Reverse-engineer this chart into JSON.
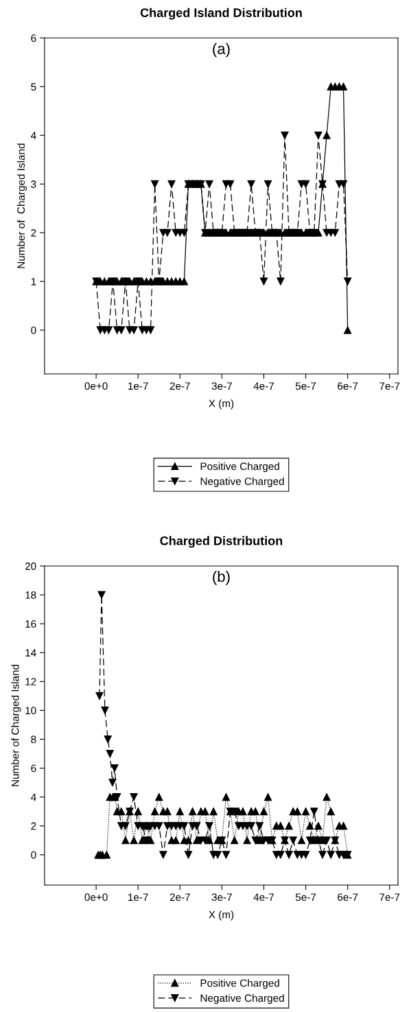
{
  "chart_data": [
    {
      "type": "line",
      "title": "Charged Island Distribution",
      "xlabel": "X (m)",
      "ylabel": "Number of  Charged Island",
      "annotations": [
        "(a)"
      ],
      "xlim": [
        -1.23e-07,
        7.2e-07
      ],
      "xticks": [
        {
          "value": 0,
          "label": "0e+0"
        },
        {
          "value": 1e-07,
          "label": "1e-7"
        },
        {
          "value": 2e-07,
          "label": "2e-7"
        },
        {
          "value": 3e-07,
          "label": "3e-7"
        },
        {
          "value": 4e-07,
          "label": "4e-7"
        },
        {
          "value": 5e-07,
          "label": "5e-7"
        },
        {
          "value": 6e-07,
          "label": "6e-7"
        },
        {
          "value": 7e-07,
          "label": "7e-7"
        }
      ],
      "ylim": [
        -0.9,
        6
      ],
      "yticks": [
        0,
        1,
        2,
        3,
        4,
        5,
        6
      ],
      "grid": false,
      "legend": "bottom",
      "series": [
        {
          "name": "Positive Charged",
          "color": "#000000",
          "marker": "triangle",
          "line_style": "solid",
          "x": [
            0,
            1e-08,
            2e-08,
            3e-08,
            4e-08,
            5e-08,
            6e-08,
            7e-08,
            8e-08,
            9e-08,
            1e-07,
            1.1e-07,
            1.2e-07,
            1.3e-07,
            1.4e-07,
            1.5e-07,
            1.6e-07,
            1.7e-07,
            1.8e-07,
            1.9e-07,
            2e-07,
            2.1e-07,
            2.2e-07,
            2.3e-07,
            2.4e-07,
            2.5e-07,
            2.6e-07,
            2.7e-07,
            2.8e-07,
            2.9e-07,
            3e-07,
            3.1e-07,
            3.2e-07,
            3.3e-07,
            3.4e-07,
            3.5e-07,
            3.6e-07,
            3.7e-07,
            3.8e-07,
            3.9e-07,
            4e-07,
            4.1e-07,
            4.2e-07,
            4.3e-07,
            4.4e-07,
            4.5e-07,
            4.6e-07,
            4.7e-07,
            4.8e-07,
            4.9e-07,
            5e-07,
            5.1e-07,
            5.2e-07,
            5.3e-07,
            5.4e-07,
            5.5e-07,
            5.6e-07,
            5.7e-07,
            5.8e-07,
            5.9e-07,
            6e-07
          ],
          "values": [
            1,
            1,
            1,
            1,
            1,
            1,
            1,
            1,
            1,
            1,
            1,
            1,
            1,
            1,
            1,
            1,
            1,
            1,
            1,
            1,
            1,
            1,
            3,
            3,
            3,
            3,
            2,
            2,
            2,
            2,
            2,
            2,
            2,
            2,
            2,
            2,
            2,
            2,
            2,
            2,
            2,
            2,
            2,
            2,
            2,
            2,
            2,
            2,
            2,
            2,
            2,
            2,
            2,
            2,
            3,
            4,
            5,
            5,
            5,
            5,
            0
          ]
        },
        {
          "name": "Negative Charged",
          "color": "#000000",
          "marker": "triangle_down",
          "line_style": "dashed",
          "x": [
            0,
            1e-08,
            2e-08,
            3e-08,
            4e-08,
            5e-08,
            6e-08,
            7e-08,
            8e-08,
            9e-08,
            1e-07,
            1.1e-07,
            1.2e-07,
            1.3e-07,
            1.4e-07,
            1.5e-07,
            1.6e-07,
            1.7e-07,
            1.8e-07,
            1.9e-07,
            2e-07,
            2.1e-07,
            2.2e-07,
            2.3e-07,
            2.4e-07,
            2.5e-07,
            2.6e-07,
            2.7e-07,
            2.8e-07,
            2.9e-07,
            3e-07,
            3.1e-07,
            3.2e-07,
            3.3e-07,
            3.4e-07,
            3.5e-07,
            3.6e-07,
            3.7e-07,
            3.8e-07,
            3.9e-07,
            4e-07,
            4.1e-07,
            4.2e-07,
            4.3e-07,
            4.4e-07,
            4.5e-07,
            4.6e-07,
            4.7e-07,
            4.8e-07,
            4.9e-07,
            5e-07,
            5.1e-07,
            5.2e-07,
            5.3e-07,
            5.4e-07,
            5.5e-07,
            5.6e-07,
            5.7e-07,
            5.8e-07,
            5.9e-07,
            6e-07
          ],
          "values": [
            1,
            0,
            0,
            0,
            1,
            0,
            0,
            1,
            0,
            0,
            1,
            0,
            0,
            0,
            3,
            1,
            2,
            2,
            3,
            2,
            2,
            2,
            3,
            3,
            3,
            3,
            2,
            3,
            2,
            2,
            2,
            3,
            3,
            2,
            2,
            2,
            2,
            3,
            2,
            2,
            1,
            3,
            2,
            2,
            1,
            4,
            2,
            2,
            2,
            3,
            3,
            2,
            2,
            4,
            3,
            2,
            2,
            2,
            3,
            3,
            1
          ]
        }
      ]
    },
    {
      "type": "line",
      "title": "Charged Distribution",
      "xlabel": "X (m)",
      "ylabel": "Number of Charged Island",
      "annotations": [
        "(b)"
      ],
      "xlim": [
        -1.23e-07,
        7.2e-07
      ],
      "xticks": [
        {
          "value": 0,
          "label": "0e+0"
        },
        {
          "value": 1e-07,
          "label": "1e-7"
        },
        {
          "value": 2e-07,
          "label": "2e-7"
        },
        {
          "value": 3e-07,
          "label": "3e-7"
        },
        {
          "value": 4e-07,
          "label": "4e-7"
        },
        {
          "value": 5e-07,
          "label": "5e-7"
        },
        {
          "value": 6e-07,
          "label": "6e-7"
        },
        {
          "value": 7e-07,
          "label": "7e-7"
        }
      ],
      "ylim": [
        -2.1,
        20
      ],
      "yticks": [
        0,
        2,
        4,
        6,
        8,
        10,
        12,
        14,
        16,
        18,
        20
      ],
      "grid": false,
      "legend": "bottom",
      "series": [
        {
          "name": "Positive Charged",
          "color": "#000000",
          "marker": "triangle",
          "line_style": "dotted",
          "x": [
            5e-09,
            1e-08,
            1.5e-08,
            2.5e-08,
            3.3e-08,
            4e-08,
            4.5e-08,
            5e-08,
            6e-08,
            7e-08,
            8e-08,
            9e-08,
            1e-07,
            1.1e-07,
            1.2e-07,
            1.3e-07,
            1.4e-07,
            1.5e-07,
            1.6e-07,
            1.7e-07,
            1.8e-07,
            1.9e-07,
            2e-07,
            2.1e-07,
            2.2e-07,
            2.3e-07,
            2.4e-07,
            2.5e-07,
            2.6e-07,
            2.7e-07,
            2.8e-07,
            2.9e-07,
            3e-07,
            3.1e-07,
            3.2e-07,
            3.3e-07,
            3.4e-07,
            3.5e-07,
            3.6e-07,
            3.7e-07,
            3.8e-07,
            3.9e-07,
            4e-07,
            4.1e-07,
            4.2e-07,
            4.3e-07,
            4.4e-07,
            4.5e-07,
            4.6e-07,
            4.7e-07,
            4.8e-07,
            4.9e-07,
            5e-07,
            5.1e-07,
            5.2e-07,
            5.3e-07,
            5.4e-07,
            5.5e-07,
            5.6e-07,
            5.7e-07,
            5.8e-07,
            5.9e-07,
            6e-07
          ],
          "values": [
            0,
            0,
            0,
            0,
            4,
            4,
            4,
            3,
            3,
            1,
            3,
            1,
            3,
            1,
            2,
            1,
            3,
            4,
            3,
            3,
            1,
            1,
            3,
            1,
            1,
            3,
            1,
            3,
            3,
            1,
            3,
            1,
            1,
            4,
            3,
            1,
            3,
            3,
            1,
            3,
            3,
            1,
            3,
            4,
            1,
            2,
            2,
            1,
            2,
            3,
            3,
            1,
            3,
            2,
            1,
            2,
            1,
            4,
            3,
            1,
            2,
            2,
            0
          ]
        },
        {
          "name": "Negative Charged",
          "color": "#000000",
          "marker": "triangle_down",
          "line_style": "dashed",
          "x": [
            8e-09,
            1.3e-08,
            2.1e-08,
            2.8e-08,
            3.3e-08,
            3.9e-08,
            4.4e-08,
            5e-08,
            6e-08,
            7e-08,
            8e-08,
            9e-08,
            1e-07,
            1.1e-07,
            1.2e-07,
            1.3e-07,
            1.4e-07,
            1.5e-07,
            1.6e-07,
            1.7e-07,
            1.8e-07,
            1.9e-07,
            2e-07,
            2.1e-07,
            2.2e-07,
            2.3e-07,
            2.4e-07,
            2.5e-07,
            2.6e-07,
            2.7e-07,
            2.8e-07,
            2.9e-07,
            3e-07,
            3.1e-07,
            3.2e-07,
            3.3e-07,
            3.4e-07,
            3.5e-07,
            3.6e-07,
            3.7e-07,
            3.8e-07,
            3.9e-07,
            4e-07,
            4.1e-07,
            4.2e-07,
            4.3e-07,
            4.4e-07,
            4.5e-07,
            4.6e-07,
            4.7e-07,
            4.8e-07,
            4.9e-07,
            5e-07,
            5.1e-07,
            5.2e-07,
            5.3e-07,
            5.4e-07,
            5.5e-07,
            5.6e-07,
            5.7e-07,
            5.8e-07,
            5.9e-07,
            6e-07
          ],
          "values": [
            11,
            18,
            10,
            8,
            7,
            5,
            6,
            4,
            2,
            2,
            3,
            4,
            2,
            2,
            1,
            2,
            2,
            2,
            0,
            2,
            2,
            2,
            2,
            2,
            0,
            2,
            2,
            1,
            1,
            2,
            0,
            0,
            1,
            0,
            3,
            3,
            2,
            2,
            2,
            2,
            1,
            2,
            1,
            1,
            1,
            0,
            0,
            1,
            0,
            1,
            0,
            0,
            0,
            1,
            3,
            1,
            0,
            1,
            0,
            1,
            0,
            0,
            0
          ]
        }
      ]
    }
  ]
}
